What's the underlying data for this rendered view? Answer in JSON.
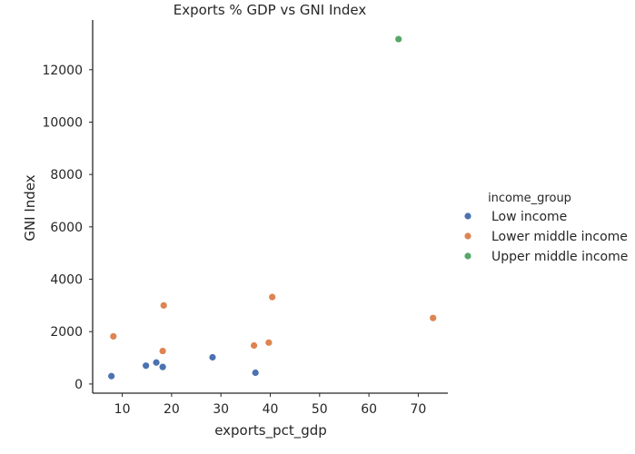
{
  "chart_data": {
    "type": "scatter",
    "title": "Exports % GDP vs GNI Index",
    "xlabel": "exports_pct_gdp",
    "ylabel": "GNI Index",
    "xlim": [
      4,
      76
    ],
    "ylim": [
      -350,
      13900
    ],
    "xticks": [
      10,
      20,
      30,
      40,
      50,
      60,
      70
    ],
    "yticks": [
      0,
      2000,
      4000,
      6000,
      8000,
      10000,
      12000
    ],
    "grid": false,
    "legend": {
      "title": "income_group",
      "placement": "right"
    },
    "series": [
      {
        "name": "Low income",
        "color": "#4c72b0",
        "points": [
          {
            "x": 7.8,
            "y": 300
          },
          {
            "x": 14.8,
            "y": 700
          },
          {
            "x": 16.9,
            "y": 820
          },
          {
            "x": 18.2,
            "y": 650
          },
          {
            "x": 28.3,
            "y": 1020
          },
          {
            "x": 37.0,
            "y": 430
          }
        ]
      },
      {
        "name": "Lower middle income",
        "color": "#dd8452",
        "points": [
          {
            "x": 8.2,
            "y": 1820
          },
          {
            "x": 18.2,
            "y": 1260
          },
          {
            "x": 18.4,
            "y": 3000
          },
          {
            "x": 36.7,
            "y": 1470
          },
          {
            "x": 39.7,
            "y": 1580
          },
          {
            "x": 40.4,
            "y": 3320
          },
          {
            "x": 73.0,
            "y": 2520
          }
        ]
      },
      {
        "name": "Upper middle income",
        "color": "#55a868",
        "points": [
          {
            "x": 66.0,
            "y": 13170
          }
        ]
      }
    ]
  }
}
